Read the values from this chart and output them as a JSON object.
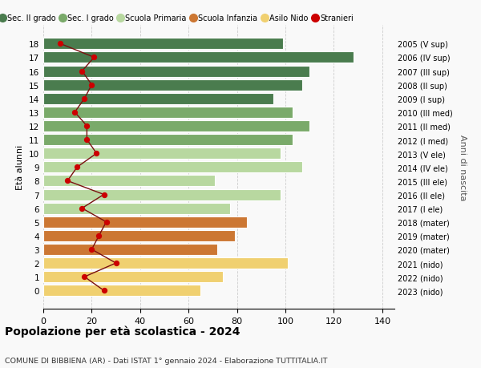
{
  "ages": [
    18,
    17,
    16,
    15,
    14,
    13,
    12,
    11,
    10,
    9,
    8,
    7,
    6,
    5,
    4,
    3,
    2,
    1,
    0
  ],
  "right_labels": [
    "2005 (V sup)",
    "2006 (IV sup)",
    "2007 (III sup)",
    "2008 (II sup)",
    "2009 (I sup)",
    "2010 (III med)",
    "2011 (II med)",
    "2012 (I med)",
    "2013 (V ele)",
    "2014 (IV ele)",
    "2015 (III ele)",
    "2016 (II ele)",
    "2017 (I ele)",
    "2018 (mater)",
    "2019 (mater)",
    "2020 (mater)",
    "2021 (nido)",
    "2022 (nido)",
    "2023 (nido)"
  ],
  "bar_values": [
    99,
    128,
    110,
    107,
    95,
    103,
    110,
    103,
    98,
    107,
    71,
    98,
    77,
    84,
    79,
    72,
    101,
    74,
    65
  ],
  "bar_colors": [
    "#4a7c4e",
    "#4a7c4e",
    "#4a7c4e",
    "#4a7c4e",
    "#4a7c4e",
    "#7aaa6a",
    "#7aaa6a",
    "#7aaa6a",
    "#b8d8a0",
    "#b8d8a0",
    "#b8d8a0",
    "#b8d8a0",
    "#b8d8a0",
    "#cc7733",
    "#cc7733",
    "#cc7733",
    "#f0d070",
    "#f0d070",
    "#f0d070"
  ],
  "stranieri_values": [
    7,
    21,
    16,
    20,
    17,
    13,
    18,
    18,
    22,
    14,
    10,
    25,
    16,
    26,
    23,
    20,
    30,
    17,
    25
  ],
  "title": "Popolazione per età scolastica - 2024",
  "subtitle": "COMUNE DI BIBBIENA (AR) - Dati ISTAT 1° gennaio 2024 - Elaborazione TUTTITALIA.IT",
  "ylabel": "Età alunni",
  "right_ylabel": "Anni di nascita",
  "xlim": [
    0,
    145
  ],
  "xticks": [
    0,
    20,
    40,
    60,
    80,
    100,
    120,
    140
  ],
  "legend_labels": [
    "Sec. II grado",
    "Sec. I grado",
    "Scuola Primaria",
    "Scuola Infanzia",
    "Asilo Nido",
    "Stranieri"
  ],
  "legend_colors": [
    "#4a7c4e",
    "#7aaa6a",
    "#b8d8a0",
    "#cc7733",
    "#f0d070",
    "#cc0000"
  ],
  "bg_color": "#f9f9f9",
  "bar_height": 0.82,
  "stranieri_line_color": "#7a1010",
  "stranieri_dot_color": "#cc0000"
}
